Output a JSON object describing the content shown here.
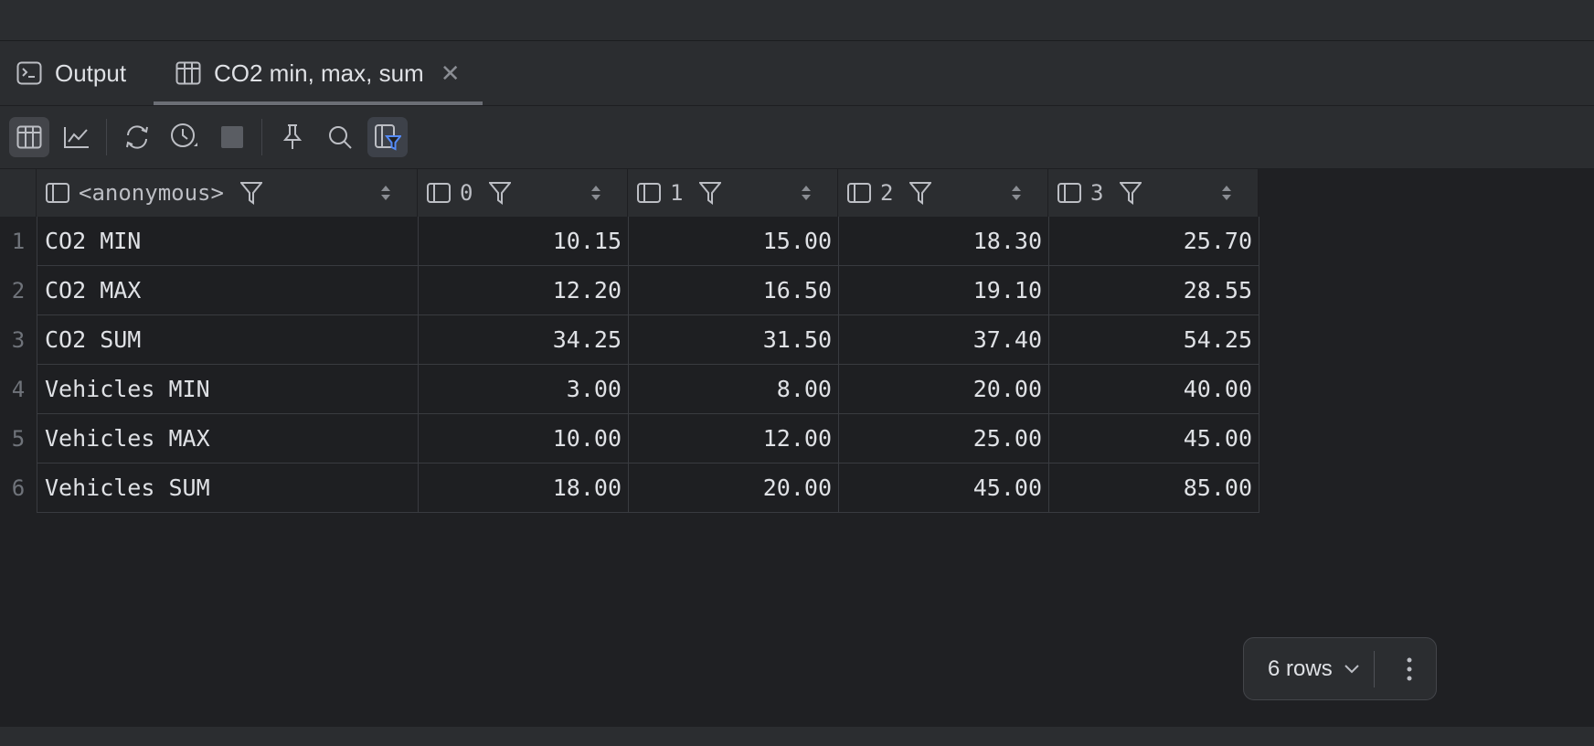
{
  "tabs": [
    {
      "label": "Output",
      "icon": "terminal-icon"
    },
    {
      "label": "CO2 min, max, sum",
      "icon": "table-icon"
    }
  ],
  "toolbar": {
    "buttons": [
      "table-view-icon",
      "chart-view-icon",
      "refresh-icon",
      "history-icon",
      "stop-icon",
      "pin-icon",
      "search-icon",
      "column-filter-icon"
    ]
  },
  "table": {
    "columns": [
      "<anonymous>",
      "0",
      "1",
      "2",
      "3"
    ],
    "rows": [
      {
        "num": "1",
        "label": "CO2 MIN",
        "values": [
          "10.15",
          "15.00",
          "18.30",
          "25.70"
        ]
      },
      {
        "num": "2",
        "label": "CO2 MAX",
        "values": [
          "12.20",
          "16.50",
          "19.10",
          "28.55"
        ]
      },
      {
        "num": "3",
        "label": "CO2 SUM",
        "values": [
          "34.25",
          "31.50",
          "37.40",
          "54.25"
        ]
      },
      {
        "num": "4",
        "label": "Vehicles MIN",
        "values": [
          "3.00",
          "8.00",
          "20.00",
          "40.00"
        ]
      },
      {
        "num": "5",
        "label": "Vehicles MAX",
        "values": [
          "10.00",
          "12.00",
          "25.00",
          "45.00"
        ]
      },
      {
        "num": "6",
        "label": "Vehicles SUM",
        "values": [
          "18.00",
          "20.00",
          "45.00",
          "85.00"
        ]
      }
    ]
  },
  "footer": {
    "rows_label": "6 rows"
  },
  "colors": {
    "accent_filter": "#548af7",
    "background": "#1f2023",
    "panel": "#2b2d30"
  }
}
